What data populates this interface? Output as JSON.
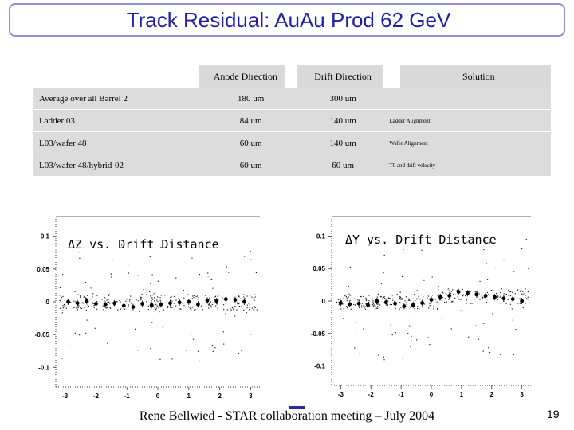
{
  "title": "Track Residual: AuAu Prod 62 GeV",
  "table": {
    "headers": [
      "Anode Direction",
      "Drift Direction",
      "Solution"
    ],
    "rows": [
      {
        "label": "Average over all Barrel 2",
        "anode": "180 um",
        "drift": "300 um",
        "solution": ""
      },
      {
        "label": "Ladder 03",
        "anode": "84 um",
        "drift": "140 um",
        "solution": "Ladder Alignment"
      },
      {
        "label": "L03/wafer 48",
        "anode": "60 um",
        "drift": "140 um",
        "solution": "Wafer Alignment"
      },
      {
        "label": "L03/wafer 48/hybrid-02",
        "anode": "60 um",
        "drift": "60 um",
        "solution": "T0 and drift velocity"
      }
    ]
  },
  "chart_data": [
    {
      "type": "scatter",
      "title": "ΔZ vs. Drift Distance",
      "xlim": [
        -3.3,
        3.3
      ],
      "ylim": [
        -0.13,
        0.13
      ],
      "xticks": [
        "-3",
        "-2",
        "-1",
        "0",
        "1",
        "2",
        "3"
      ],
      "yticks": [
        "0.1",
        "0.05",
        "0",
        "-0.05",
        "-0.1"
      ],
      "series": [
        {
          "x": [
            -2.9,
            -2.6,
            -2.3,
            -2.0,
            -1.7,
            -1.4,
            -1.1,
            -0.8,
            -0.5,
            -0.2,
            0.1,
            0.4,
            0.7,
            1.0,
            1.3,
            1.6,
            1.9,
            2.2,
            2.5,
            2.8
          ],
          "y": [
            0.0,
            -0.002,
            0.001,
            -0.003,
            -0.004,
            -0.002,
            -0.006,
            -0.008,
            -0.003,
            -0.005,
            -0.004,
            -0.002,
            -0.001,
            0.0,
            -0.004,
            0.002,
            0.001,
            0.004,
            0.003,
            0.0
          ]
        }
      ]
    },
    {
      "type": "scatter",
      "title": "ΔY vs. Drift Distance",
      "xlim": [
        -3.3,
        3.3
      ],
      "ylim": [
        -0.13,
        0.13
      ],
      "xticks": [
        "-3",
        "-2",
        "-1",
        "0",
        "1",
        "2",
        "3"
      ],
      "yticks": [
        "0.1",
        "0.05",
        "0",
        "-0.05",
        "-0.1"
      ],
      "series": [
        {
          "x": [
            -3.0,
            -2.7,
            -2.4,
            -2.1,
            -1.8,
            -1.5,
            -1.2,
            -0.9,
            -0.6,
            -0.3,
            0.0,
            0.3,
            0.6,
            0.9,
            1.2,
            1.5,
            1.8,
            2.1,
            2.4,
            2.7,
            3.0
          ],
          "y": [
            -0.003,
            -0.005,
            -0.004,
            -0.006,
            0.0,
            -0.002,
            -0.004,
            -0.008,
            -0.006,
            -0.003,
            0.002,
            0.006,
            0.008,
            0.014,
            0.012,
            0.01,
            0.008,
            0.006,
            0.004,
            0.003,
            0.0
          ]
        }
      ]
    }
  ],
  "footer": "Rene Bellwied - STAR collaboration meeting – July 2004",
  "page_number": "19"
}
